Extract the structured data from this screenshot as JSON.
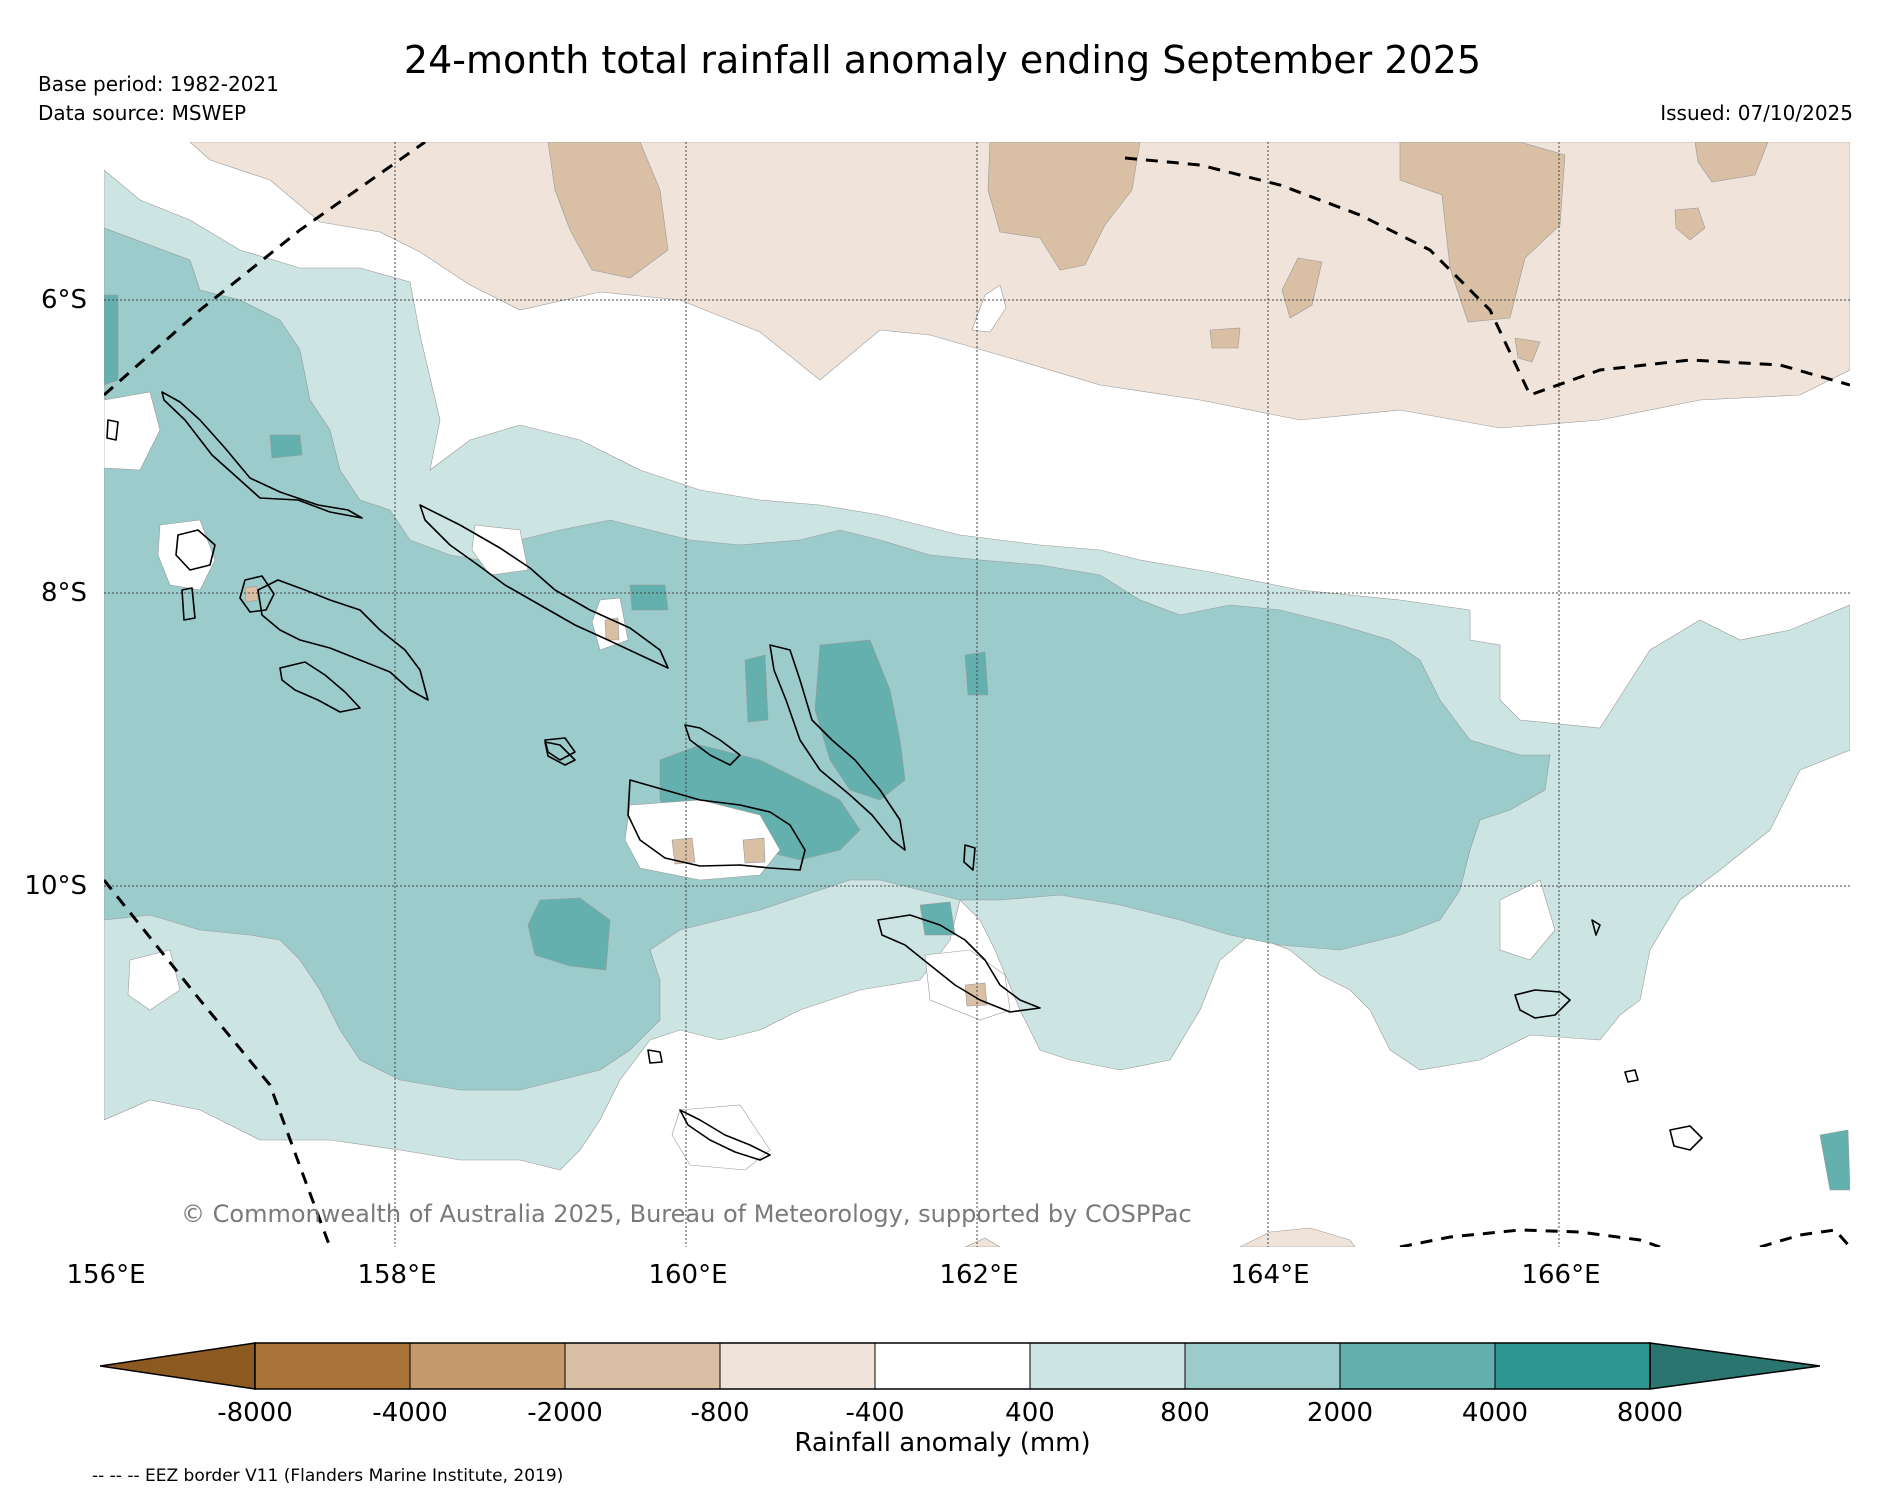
{
  "title": "24-month total rainfall anomaly ending September 2025",
  "base_period": "Base period: 1982-2021",
  "data_source": "Data source: MSWEP",
  "issued": "Issued: 07/10/2025",
  "copyright": "© Commonwealth of Australia 2025, Bureau of Meteorology, supported by COSPPac",
  "eez_note": "-- -- -- EEZ border V11 (Flanders Marine Institute, 2019)",
  "lat_labels": [
    "6°S",
    "8°S",
    "10°S"
  ],
  "lon_labels": [
    "156°E",
    "158°E",
    "160°E",
    "162°E",
    "164°E",
    "166°E"
  ],
  "colorbar": {
    "label": "Rainfall anomaly (mm)",
    "ticks": [
      "-8000",
      "-4000",
      "-2000",
      "-800",
      "-400",
      "400",
      "800",
      "2000",
      "4000",
      "8000"
    ],
    "colors": {
      "extend_low": "#8c5a20",
      "lt_-8000": "#8c5a20",
      "-8000_-4000": "#a97237",
      "-4000_-2000": "#c49a6c",
      "-2000_-800": "#d9bfa4",
      "-800_-400": "#f0e4da",
      "-400_400": "#ffffff",
      "400_800": "#cce5e3",
      "800_2000": "#9bcbca",
      "2000_4000": "#63b0ae",
      "4000_8000": "#2f9793",
      "extend_high": "#2a7570"
    }
  }
}
